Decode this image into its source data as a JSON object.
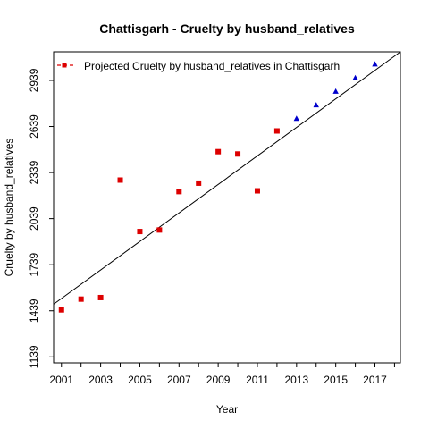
{
  "chart_data": {
    "type": "scatter",
    "title": "Chattisgarh  -  Cruelty by husband_relatives",
    "xlabel": "Year",
    "ylabel": "Cruelty by husband_relatives",
    "xlim": [
      2000.6,
      2018.3
    ],
    "ylim": [
      1100,
      3125
    ],
    "x_ticks": [
      2001,
      2003,
      2005,
      2007,
      2009,
      2011,
      2013,
      2015,
      2017
    ],
    "y_ticks": [
      1139,
      1439,
      1739,
      2039,
      2339,
      2639,
      2939
    ],
    "legend": {
      "label": "Projected  Cruelty by husband_relatives  in  Chattisgarh",
      "position": "top-left"
    },
    "series": [
      {
        "kind": "actual",
        "color": "#dd0000",
        "marker": "square",
        "points": [
          {
            "x": 2001,
            "y": 1445
          },
          {
            "x": 2002,
            "y": 1515
          },
          {
            "x": 2003,
            "y": 1525
          },
          {
            "x": 2004,
            "y": 2290
          },
          {
            "x": 2005,
            "y": 1955
          },
          {
            "x": 2006,
            "y": 1965
          },
          {
            "x": 2007,
            "y": 2215
          },
          {
            "x": 2008,
            "y": 2270
          },
          {
            "x": 2009,
            "y": 2475
          },
          {
            "x": 2010,
            "y": 2460
          },
          {
            "x": 2011,
            "y": 2220
          },
          {
            "x": 2012,
            "y": 2610
          }
        ]
      },
      {
        "kind": "projected",
        "color": "#0000cc",
        "marker": "triangle",
        "points": [
          {
            "x": 2013,
            "y": 2690
          },
          {
            "x": 2014,
            "y": 2778
          },
          {
            "x": 2015,
            "y": 2867
          },
          {
            "x": 2016,
            "y": 2955
          },
          {
            "x": 2017,
            "y": 3044
          }
        ]
      }
    ],
    "trend_line": {
      "color": "#000000",
      "from": {
        "x": 2000.6,
        "y": 1482
      },
      "to": {
        "x": 2018.3,
        "y": 3125
      }
    }
  }
}
